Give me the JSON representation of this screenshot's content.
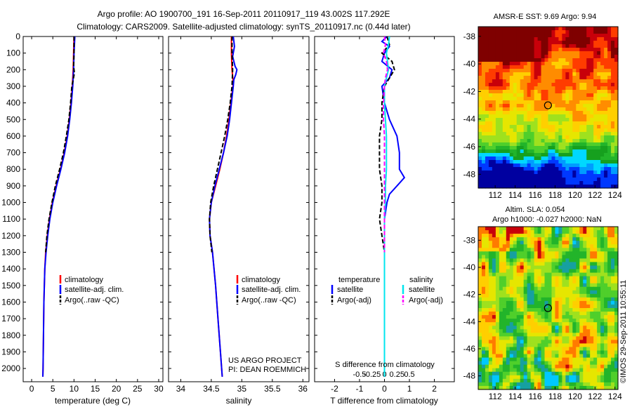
{
  "header": {
    "line1": "Argo profile: AO 1900700_191 16-Sep-2011 20110917_119 43.002S 117.292E",
    "line2": "Climatology: CARS2009. Satellite-adjusted climatology: synTS_20110917.nc (0.44d later)"
  },
  "colors": {
    "climatology": "#ff0000",
    "satellite": "#0000ff",
    "argo": "#000000",
    "sal_satellite": "#00e5ee",
    "sal_argo": "#ff00ff"
  },
  "legend": {
    "climatology": "climatology",
    "satellite_adj": "satellite-adj. clim.",
    "argo_raw": "Argo(..raw -QC)",
    "temperature": "temperature",
    "salinity": "salinity",
    "satellite": "satellite",
    "argo_adj": "Argo(-adj)"
  },
  "notes": {
    "project": "US ARGO PROJECT",
    "pi": "PI: DEAN ROEMMICH",
    "s_diff": "S difference from climatology",
    "stamp": "©IMOS 29-Sep-2011 10:55:11"
  },
  "maps": {
    "sst_title": "AMSR-E SST: 9.69 Argo: 9.94",
    "sla_title1": "Altim. SLA: 0.054",
    "sla_title2": "Argo h1000: -0.027 h2000: NaN"
  },
  "chart_data": [
    {
      "type": "line",
      "xlabel": "temperature (deg C)",
      "xlim": [
        -2,
        31
      ],
      "xticks": [
        0,
        5,
        10,
        15,
        20,
        25,
        30
      ],
      "ylim": [
        0,
        2080
      ],
      "yticks": [
        0,
        100,
        200,
        300,
        400,
        500,
        600,
        700,
        800,
        900,
        1000,
        1100,
        1200,
        1300,
        1400,
        1500,
        1600,
        1700,
        1800,
        1900,
        2000
      ],
      "y_reversed": true,
      "series": [
        {
          "name": "climatology",
          "color": "#ff0000",
          "dash": "solid",
          "depth": [
            0,
            100,
            200,
            300,
            400,
            500,
            600,
            700,
            800,
            900,
            1000,
            1100,
            1200,
            1300,
            1400,
            1600,
            1800,
            2000,
            2050
          ],
          "values": [
            10.0,
            9.9,
            9.8,
            9.6,
            9.3,
            8.9,
            8.4,
            7.7,
            6.8,
            5.8,
            4.9,
            4.2,
            3.7,
            3.3,
            3.1,
            2.9,
            2.8,
            2.7,
            2.65
          ]
        },
        {
          "name": "satellite-adj. clim.",
          "color": "#0000ff",
          "dash": "solid",
          "depth": [
            0,
            100,
            200,
            300,
            400,
            500,
            600,
            700,
            800,
            900,
            1000,
            1100,
            1200,
            1300,
            1400,
            1600,
            1800,
            2000,
            2050
          ],
          "values": [
            10.2,
            10.0,
            9.9,
            9.7,
            9.4,
            9.0,
            8.5,
            7.8,
            6.9,
            5.9,
            5.0,
            4.3,
            3.8,
            3.4,
            3.1,
            2.9,
            2.8,
            2.7,
            2.65
          ]
        },
        {
          "name": "Argo(..raw -QC)",
          "color": "#000000",
          "dash": "dashed",
          "depth": [
            0,
            100,
            180,
            220,
            260,
            300,
            400,
            500,
            600,
            700,
            800,
            900,
            1000,
            1100,
            1200,
            1300
          ],
          "values": [
            10.0,
            10.0,
            9.9,
            10.1,
            9.8,
            9.5,
            9.2,
            8.8,
            8.2,
            7.5,
            6.6,
            5.6,
            4.8,
            4.1,
            3.6,
            3.3
          ]
        }
      ]
    },
    {
      "type": "line",
      "xlabel": "salinity",
      "xlim": [
        33.8,
        36.1
      ],
      "xticks": [
        34,
        34.5,
        35,
        35.5,
        36
      ],
      "ylim": [
        0,
        2080
      ],
      "y_reversed": true,
      "series": [
        {
          "name": "climatology",
          "color": "#ff0000",
          "dash": "solid",
          "depth": [
            0,
            100,
            200,
            280,
            400,
            500,
            600,
            700,
            800,
            900,
            1000,
            1100,
            1200,
            1300,
            1500,
            1700,
            1900,
            2050
          ],
          "values": [
            34.83,
            34.83,
            34.84,
            34.86,
            34.82,
            34.79,
            34.75,
            34.7,
            34.64,
            34.57,
            34.5,
            34.47,
            34.48,
            34.52,
            34.57,
            34.61,
            34.65,
            34.68
          ]
        },
        {
          "name": "satellite-adj. clim.",
          "color": "#0000ff",
          "dash": "solid",
          "depth": [
            0,
            60,
            120,
            180,
            200,
            230,
            260,
            300,
            400,
            500,
            600,
            700,
            800,
            900,
            1000,
            1100,
            1200,
            1300,
            1500,
            1700,
            1900,
            2050
          ],
          "values": [
            34.86,
            34.88,
            34.85,
            34.89,
            34.92,
            34.9,
            34.87,
            34.86,
            34.83,
            34.8,
            34.76,
            34.7,
            34.63,
            34.56,
            34.5,
            34.47,
            34.48,
            34.52,
            34.57,
            34.61,
            34.65,
            34.68
          ]
        },
        {
          "name": "Argo(..raw -QC)",
          "color": "#000000",
          "dash": "dashed",
          "depth": [
            0,
            100,
            200,
            300,
            400,
            500,
            600,
            700,
            800,
            900,
            1000,
            1100,
            1200,
            1300
          ],
          "values": [
            34.84,
            34.84,
            34.85,
            34.84,
            34.81,
            34.77,
            34.72,
            34.66,
            34.6,
            34.54,
            34.49,
            34.47,
            34.48,
            34.51
          ]
        }
      ]
    },
    {
      "type": "line",
      "xlabel": "T difference from climatology",
      "xlim": [
        -2.8,
        2.8
      ],
      "xticks": [
        -2,
        -1,
        0,
        1,
        2
      ],
      "secondary_xlabel": "S difference from climatology",
      "secondary_xticks": [
        "-0.5",
        "-0.25",
        "0",
        "0.25",
        "0.5"
      ],
      "ylim": [
        0,
        2080
      ],
      "y_reversed": true,
      "series": [
        {
          "name": "temperature satellite",
          "color": "#0000ff",
          "dash": "solid",
          "depth": [
            0,
            30,
            60,
            100,
            150,
            200,
            250,
            300,
            400,
            500,
            600,
            700,
            800,
            850,
            900,
            950,
            1000,
            1100,
            1200,
            1300,
            1400,
            1600,
            1800,
            2000,
            2050
          ],
          "values": [
            0.1,
            -0.1,
            0.2,
            0.0,
            -0.1,
            0.3,
            0.2,
            -0.1,
            0.0,
            0.2,
            0.5,
            0.6,
            0.6,
            0.8,
            0.5,
            0.2,
            0.1,
            0.0,
            0.0,
            0.0,
            0.0,
            0.0,
            0.0,
            0.0,
            0.0
          ]
        },
        {
          "name": "temperature Argo(-adj)",
          "color": "#000000",
          "dash": "dashed",
          "depth": [
            0,
            50,
            100,
            150,
            200,
            250,
            300,
            400,
            500,
            600,
            700,
            800,
            900,
            1000,
            1100,
            1200,
            1300
          ],
          "values": [
            0.1,
            0.2,
            -0.1,
            0.3,
            0.4,
            0.2,
            0.0,
            -0.1,
            -0.1,
            -0.2,
            -0.2,
            -0.2,
            -0.1,
            -0.1,
            -0.2,
            -0.1,
            0.0
          ]
        },
        {
          "name": "salinity satellite",
          "color": "#00e5ee",
          "dash": "solid",
          "depth": [
            0,
            50,
            100,
            150,
            200,
            250,
            300,
            400,
            500,
            600,
            700,
            800,
            900,
            1000,
            1100,
            1200,
            1400,
            1600,
            1800,
            2000,
            2050
          ],
          "values": [
            0.05,
            0.04,
            0.02,
            0.03,
            0.04,
            0.02,
            0.0,
            0.0,
            0.01,
            0.02,
            0.02,
            0.02,
            0.01,
            0.01,
            0.0,
            0.0,
            0.0,
            0.0,
            0.0,
            0.0,
            0.0
          ]
        },
        {
          "name": "salinity Argo(-adj)",
          "color": "#ff00ff",
          "dash": "dashed",
          "depth": [
            0,
            50,
            100,
            150,
            200,
            250,
            300,
            400,
            500,
            600,
            700,
            800,
            900,
            1000,
            1100,
            1200,
            1300
          ],
          "values": [
            0.0,
            0.01,
            -0.01,
            0.02,
            0.03,
            0.01,
            0.0,
            -0.01,
            -0.01,
            0.0,
            0.0,
            0.0,
            0.0,
            0.0,
            0.0,
            0.0,
            0.0
          ]
        }
      ]
    },
    {
      "type": "heatmap",
      "title": "AMSR-E SST: 9.69 Argo: 9.94",
      "xlim": [
        110.3,
        124.3
      ],
      "xticks": [
        112,
        114,
        116,
        118,
        120,
        122,
        124
      ],
      "ylim": [
        -49.0,
        -37.3
      ],
      "yticks": [
        -38,
        -40,
        -42,
        -44,
        -46,
        -48
      ],
      "marker": {
        "lon": 117.29,
        "lat": -43.0
      },
      "colors": [
        "#7f0000",
        "#c8000a",
        "#ff3c00",
        "#ff8c00",
        "#ffcf00",
        "#e6e600",
        "#9fe11e",
        "#4fcf2b",
        "#22b42a",
        "#16a01e",
        "#00d8ff",
        "#009cff",
        "#0038ff",
        "#0000a0"
      ]
    },
    {
      "type": "heatmap",
      "title": "Altim. SLA: 0.054",
      "xlim": [
        110.3,
        124.3
      ],
      "xticks": [
        112,
        114,
        116,
        118,
        120,
        122,
        124
      ],
      "ylim": [
        -49.0,
        -37.0
      ],
      "yticks": [
        -38,
        -40,
        -42,
        -44,
        -46,
        -48
      ],
      "marker": {
        "lon": 117.29,
        "lat": -43.0
      },
      "colors": [
        "#c8000a",
        "#ff7a00",
        "#ffcf00",
        "#e6e600",
        "#9fe11e",
        "#4fcf2b",
        "#22b42a",
        "#16a0a0",
        "#00c8ff"
      ]
    }
  ]
}
